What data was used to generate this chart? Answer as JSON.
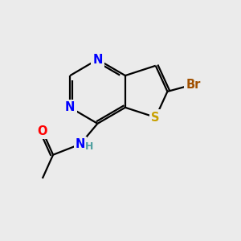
{
  "background_color": "#EBEBEB",
  "atom_colors": {
    "N": "#0000FF",
    "S": "#C8A000",
    "O": "#FF0000",
    "Br": "#A05000",
    "C": "#000000",
    "H": "#50A0A0"
  },
  "bond_color": "#000000",
  "bond_width": 1.6,
  "font_size_atom": 10.5
}
